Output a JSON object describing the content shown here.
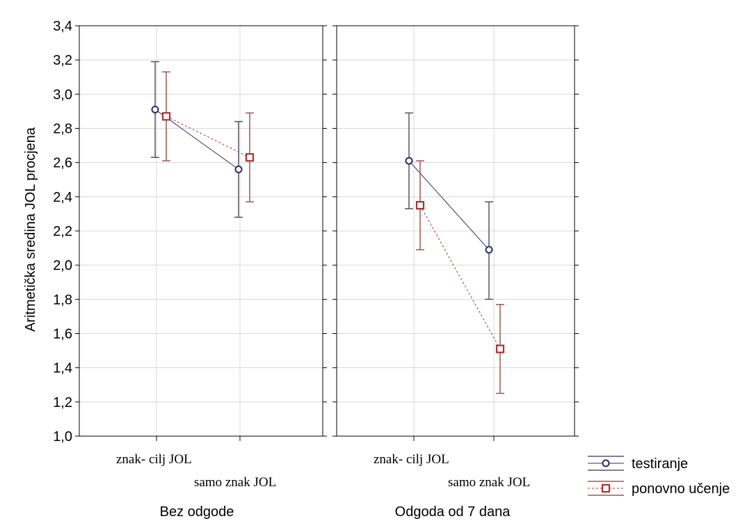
{
  "chart_data": {
    "type": "line",
    "ylabel": "Aritmetička sredina JOL procjena",
    "ylim": [
      1.0,
      3.4
    ],
    "yticks": [
      1.0,
      1.2,
      1.4,
      1.6,
      1.8,
      2.0,
      2.2,
      2.4,
      2.6,
      2.8,
      3.0,
      3.2,
      3.4
    ],
    "grid": true,
    "legend_placement": "bottom-right",
    "categories": [
      "znak- cilj JOL",
      "samo znak JOL"
    ],
    "panels": [
      {
        "label": "Bez odgode",
        "series": [
          {
            "name": "testiranje",
            "values": [
              2.91,
              2.56
            ],
            "lower": [
              2.63,
              2.28
            ],
            "upper": [
              3.19,
              2.84
            ]
          },
          {
            "name": "ponovno učenje",
            "values": [
              2.87,
              2.63
            ],
            "lower": [
              2.61,
              2.37
            ],
            "upper": [
              3.13,
              2.89
            ]
          }
        ]
      },
      {
        "label": "Odgoda od 7 dana",
        "series": [
          {
            "name": "testiranje",
            "values": [
              2.61,
              2.09
            ],
            "lower": [
              2.33,
              1.8
            ],
            "upper": [
              2.89,
              2.37
            ]
          },
          {
            "name": "ponovno učenje",
            "values": [
              2.35,
              1.51
            ],
            "lower": [
              2.09,
              1.25
            ],
            "upper": [
              2.61,
              1.77
            ]
          }
        ]
      }
    ],
    "series_styles": [
      {
        "name": "testiranje",
        "color": "#2a2a6e",
        "marker": "circle",
        "line": "solid"
      },
      {
        "name": "ponovno učenje",
        "color": "#b03030",
        "marker": "square",
        "line": "dotted"
      }
    ],
    "error_bar_colors": [
      "#555560",
      "#9a5a4a"
    ]
  }
}
